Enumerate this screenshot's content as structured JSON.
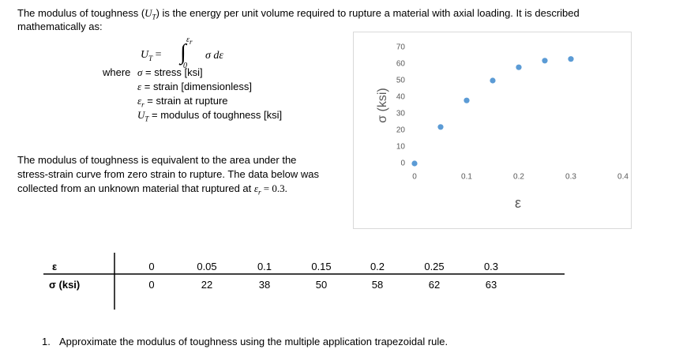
{
  "intro": {
    "before": "The modulus of toughness (",
    "sym": "U",
    "sub": "T",
    "after": ") is the energy per unit volume required to rupture a material with axial loading. It is described",
    "line2": "mathematically as:"
  },
  "equation": {
    "lhs": "U",
    "lhs_sub": "T",
    "eq": "=",
    "integral": "∫",
    "upper": "ε",
    "upper_sub": "r",
    "lower": "0",
    "integrand": "σ dε"
  },
  "definitions": {
    "where": "where",
    "items": [
      {
        "sym": "σ",
        "sub": "",
        "text": " = stress [ksi]"
      },
      {
        "sym": "ε",
        "sub": "",
        "text": " = strain [dimensionless]"
      },
      {
        "sym": "ε",
        "sub": "r",
        "text": " = strain at rupture"
      },
      {
        "sym": "U",
        "sub": "T",
        "text": " = modulus of toughness [ksi]"
      }
    ]
  },
  "paragraph": {
    "lines": [
      "The modulus of toughness is equivalent to the area under the",
      "stress-strain curve from zero strain to rupture. The data below was"
    ],
    "line3": "collected from an unknown material that ruptured at ",
    "sym": "ε",
    "sub": "r",
    "after": " = 0.3."
  },
  "table": {
    "headers": [
      "ε",
      "σ (ksi)"
    ],
    "rows": [
      [
        0,
        0.05,
        0.1,
        0.15,
        0.2,
        0.25,
        0.3
      ],
      [
        0,
        22,
        38,
        50,
        58,
        62,
        63
      ]
    ]
  },
  "question": {
    "number": "1.",
    "text": "Approximate the modulus of toughness using the multiple application trapezoidal rule."
  },
  "chart_data": {
    "type": "scatter",
    "x_label": "ε",
    "y_label": "σ (ksi)",
    "x": [
      0,
      0.05,
      0.1,
      0.15,
      0.2,
      0.25,
      0.3
    ],
    "values": [
      0,
      22,
      38,
      50,
      58,
      62,
      63
    ],
    "color": "#5b9bd5",
    "xlim": [
      0,
      0.4
    ],
    "ylim": [
      0,
      70
    ],
    "xticks": [
      0,
      0.1,
      0.2,
      0.3,
      0.4
    ],
    "yticks": [
      0,
      10,
      20,
      30,
      40,
      50,
      60,
      70
    ]
  }
}
